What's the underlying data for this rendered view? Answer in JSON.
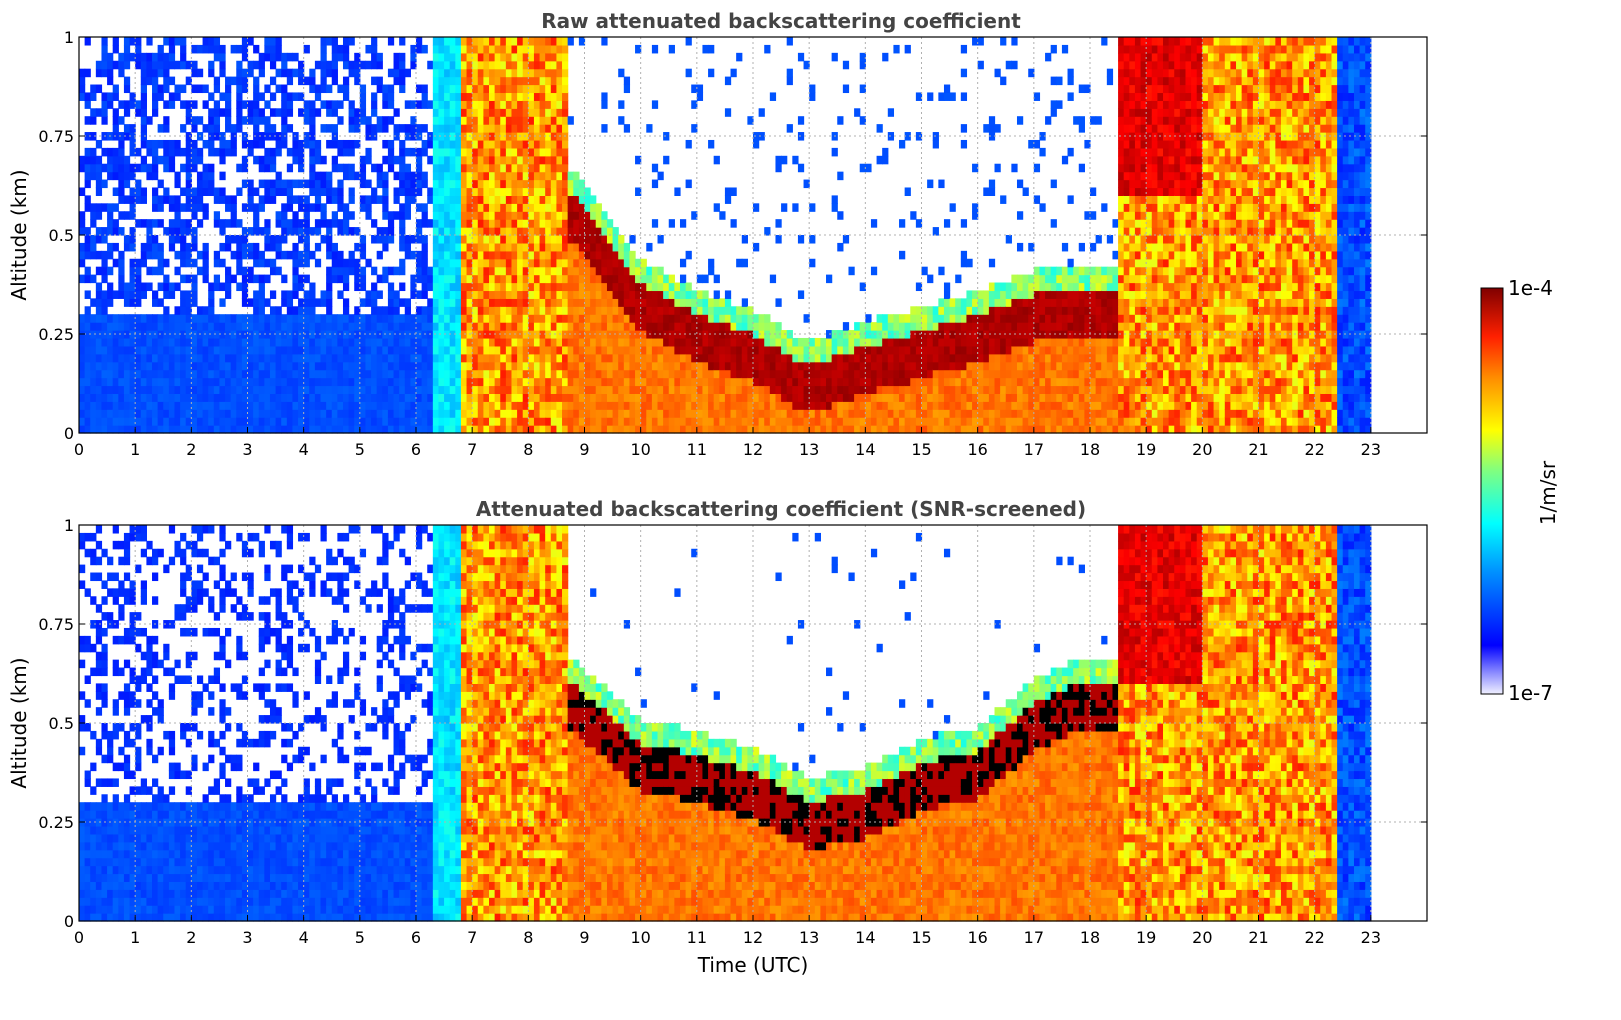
{
  "chart_data": [
    {
      "type": "heatmap",
      "title": "Raw attenuated backscattering coefficient",
      "xlabel": "",
      "ylabel": "Altitude (km)",
      "xlim": [
        0,
        24
      ],
      "ylim": [
        0,
        1
      ],
      "x_ticks": [
        "0",
        "1",
        "2",
        "3",
        "4",
        "5",
        "6",
        "7",
        "8",
        "9",
        "10",
        "11",
        "12",
        "13",
        "14",
        "15",
        "16",
        "17",
        "18",
        "19",
        "20",
        "21",
        "22",
        "23"
      ],
      "y_ticks": [
        "0",
        "0.25",
        "0.5",
        "0.75",
        "1"
      ],
      "grid": true,
      "screened": false,
      "data_end_hour": 23.0,
      "features": {
        "clear_noise_period": [
          0,
          6.3
        ],
        "fog_or_low_cloud_periods": [
          [
            6.8,
            8.7
          ],
          [
            18.5,
            22.4
          ]
        ],
        "boundary_layer_top_km": [
          {
            "x": 8.8,
            "y": 0.6
          },
          {
            "x": 10,
            "y": 0.38
          },
          {
            "x": 11,
            "y": 0.3
          },
          {
            "x": 12,
            "y": 0.25
          },
          {
            "x": 13,
            "y": 0.17
          },
          {
            "x": 14,
            "y": 0.22
          },
          {
            "x": 15,
            "y": 0.26
          },
          {
            "x": 16,
            "y": 0.3
          },
          {
            "x": 17,
            "y": 0.35
          },
          {
            "x": 17.8,
            "y": 0.36
          }
        ]
      }
    },
    {
      "type": "heatmap",
      "title": "Attenuated backscattering coefficient (SNR-screened)",
      "xlabel": "Time (UTC)",
      "ylabel": "Altitude (km)",
      "xlim": [
        0,
        24
      ],
      "ylim": [
        0,
        1
      ],
      "x_ticks": [
        "0",
        "1",
        "2",
        "3",
        "4",
        "5",
        "6",
        "7",
        "8",
        "9",
        "10",
        "11",
        "12",
        "13",
        "14",
        "15",
        "16",
        "17",
        "18",
        "19",
        "20",
        "21",
        "22",
        "23"
      ],
      "y_ticks": [
        "0",
        "0.25",
        "0.5",
        "0.75",
        "1"
      ],
      "grid": true,
      "screened": true,
      "data_end_hour": 23.0,
      "features": {
        "clear_noise_period": [
          0,
          6.3
        ],
        "fog_or_low_cloud_periods": [
          [
            6.8,
            8.7
          ],
          [
            18.5,
            22.4
          ]
        ],
        "boundary_layer_top_km": [
          {
            "x": 8.8,
            "y": 0.6
          },
          {
            "x": 10,
            "y": 0.45
          },
          {
            "x": 11,
            "y": 0.42
          },
          {
            "x": 12,
            "y": 0.38
          },
          {
            "x": 13,
            "y": 0.3
          },
          {
            "x": 14,
            "y": 0.33
          },
          {
            "x": 15,
            "y": 0.4
          },
          {
            "x": 16,
            "y": 0.43
          },
          {
            "x": 17,
            "y": 0.55
          },
          {
            "x": 17.8,
            "y": 0.6
          }
        ]
      }
    }
  ],
  "colorbar": {
    "max_label": "1e-4",
    "min_label": "1e-7",
    "unit_label": "1/m/sr",
    "scale": "log",
    "range": [
      1e-07,
      0.0001
    ],
    "colormap": "jet"
  }
}
